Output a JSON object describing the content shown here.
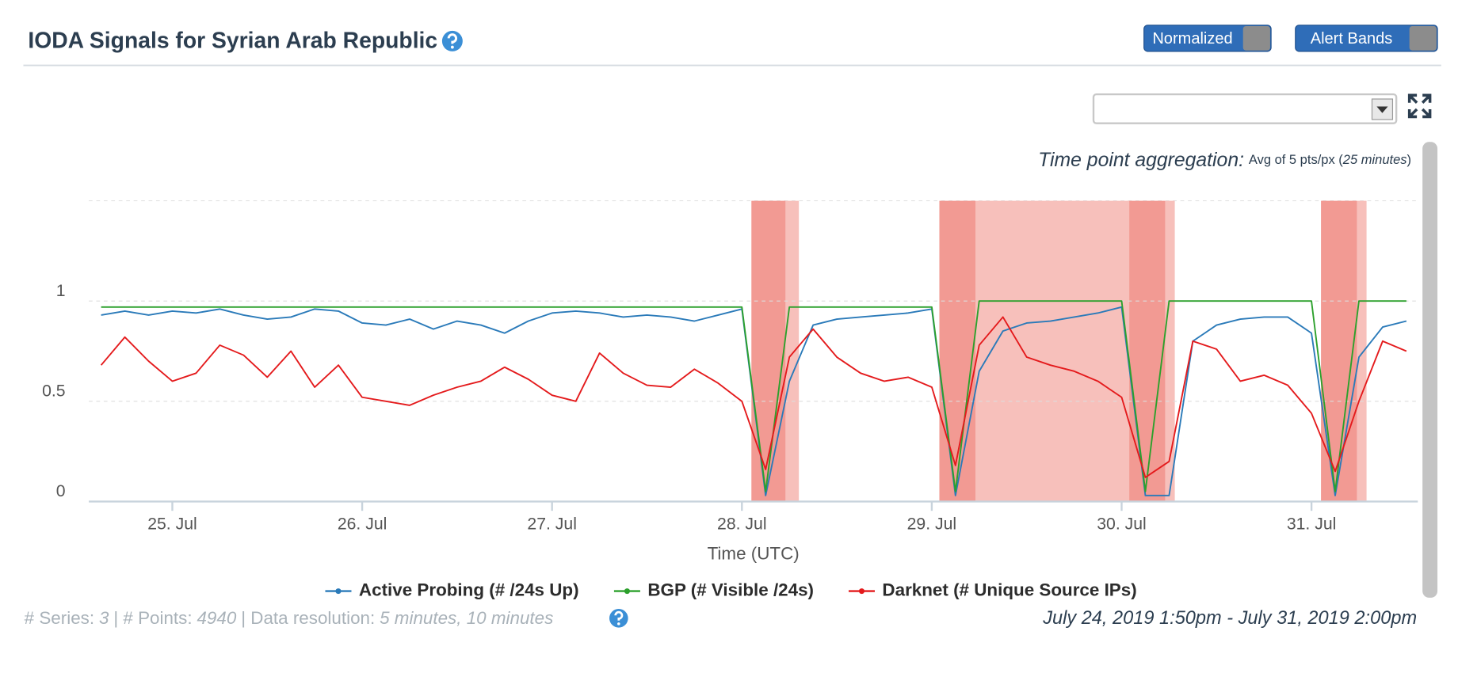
{
  "header": {
    "title": "IODA Signals for Syrian Arab Republic",
    "toggles": [
      "Normalized",
      "Alert Bands"
    ]
  },
  "aggregation": {
    "label": "Time point aggregation:",
    "text": "Avg of 5 pts/px (",
    "unit": "25 minutes",
    "close": ")"
  },
  "chart_data": {
    "type": "line",
    "xlabel": "Time (UTC)",
    "xlim": [
      24.56,
      31.56
    ],
    "xticks": [
      {
        "value": 25,
        "label": "25. Jul"
      },
      {
        "value": 26,
        "label": "26. Jul"
      },
      {
        "value": 27,
        "label": "27. Jul"
      },
      {
        "value": 28,
        "label": "28. Jul"
      },
      {
        "value": 29,
        "label": "29. Jul"
      },
      {
        "value": 30,
        "label": "30. Jul"
      },
      {
        "value": 31,
        "label": "31. Jul"
      }
    ],
    "ylim": [
      0,
      1.5
    ],
    "yticks": [
      0,
      0.5,
      1
    ],
    "grid": true,
    "x": [
      24.625,
      24.75,
      24.875,
      25.0,
      25.125,
      25.25,
      25.375,
      25.5,
      25.625,
      25.75,
      25.875,
      26.0,
      26.125,
      26.25,
      26.375,
      26.5,
      26.625,
      26.75,
      26.875,
      27.0,
      27.125,
      27.25,
      27.375,
      27.5,
      27.625,
      27.75,
      27.875,
      28.0,
      28.125,
      28.25,
      28.375,
      28.5,
      28.625,
      28.75,
      28.875,
      29.0,
      29.125,
      29.25,
      29.375,
      29.5,
      29.625,
      29.75,
      29.875,
      30.0,
      30.125,
      30.25,
      30.375,
      30.5,
      30.625,
      30.75,
      30.875,
      31.0,
      31.125,
      31.25,
      31.375,
      31.5
    ],
    "alert_bands": [
      {
        "from": 28.05,
        "to": 28.23,
        "color": "#f29a93"
      },
      {
        "from": 28.23,
        "to": 28.3,
        "color": "#f7c0bb"
      },
      {
        "from": 29.04,
        "to": 29.23,
        "color": "#f29a93"
      },
      {
        "from": 29.23,
        "to": 30.04,
        "color": "#f7c0bb"
      },
      {
        "from": 30.04,
        "to": 30.23,
        "color": "#f29a93"
      },
      {
        "from": 30.23,
        "to": 30.28,
        "color": "#f7c0bb"
      },
      {
        "from": 31.05,
        "to": 31.24,
        "color": "#f29a93"
      },
      {
        "from": 31.24,
        "to": 31.29,
        "color": "#f7c0bb"
      }
    ],
    "series": [
      {
        "name": "Active Probing (# /24s Up)",
        "color": "#2a7ab9",
        "values": [
          0.93,
          0.95,
          0.93,
          0.95,
          0.94,
          0.96,
          0.93,
          0.91,
          0.92,
          0.96,
          0.95,
          0.89,
          0.88,
          0.91,
          0.86,
          0.9,
          0.88,
          0.84,
          0.9,
          0.94,
          0.95,
          0.94,
          0.92,
          0.93,
          0.92,
          0.9,
          0.93,
          0.96,
          0.03,
          0.6,
          0.88,
          0.91,
          0.92,
          0.93,
          0.94,
          0.96,
          0.03,
          0.65,
          0.85,
          0.89,
          0.9,
          0.92,
          0.94,
          0.97,
          0.03,
          0.03,
          0.8,
          0.88,
          0.91,
          0.92,
          0.92,
          0.84,
          0.03,
          0.72,
          0.87,
          0.9
        ]
      },
      {
        "name": "BGP (# Visible /24s)",
        "color": "#2ca02c",
        "values": [
          0.97,
          0.97,
          0.97,
          0.97,
          0.97,
          0.97,
          0.97,
          0.97,
          0.97,
          0.97,
          0.97,
          0.97,
          0.97,
          0.97,
          0.97,
          0.97,
          0.97,
          0.97,
          0.97,
          0.97,
          0.97,
          0.97,
          0.97,
          0.97,
          0.97,
          0.97,
          0.97,
          0.97,
          0.05,
          0.97,
          0.97,
          0.97,
          0.97,
          0.97,
          0.97,
          0.97,
          0.05,
          1.0,
          1.0,
          1.0,
          1.0,
          1.0,
          1.0,
          1.0,
          0.05,
          1.0,
          1.0,
          1.0,
          1.0,
          1.0,
          1.0,
          1.0,
          0.05,
          1.0,
          1.0,
          1.0
        ]
      },
      {
        "name": "Darknet (# Unique Source IPs)",
        "color": "#e41a1c",
        "values": [
          0.68,
          0.82,
          0.7,
          0.6,
          0.64,
          0.78,
          0.73,
          0.62,
          0.75,
          0.57,
          0.68,
          0.52,
          0.5,
          0.48,
          0.53,
          0.57,
          0.6,
          0.67,
          0.61,
          0.53,
          0.5,
          0.74,
          0.64,
          0.58,
          0.57,
          0.66,
          0.59,
          0.5,
          0.16,
          0.72,
          0.86,
          0.72,
          0.64,
          0.6,
          0.62,
          0.57,
          0.18,
          0.78,
          0.92,
          0.72,
          0.68,
          0.65,
          0.6,
          0.52,
          0.12,
          0.2,
          0.8,
          0.76,
          0.6,
          0.63,
          0.58,
          0.44,
          0.15,
          0.5,
          0.8,
          0.75
        ]
      }
    ]
  },
  "footer": {
    "series_label": "# Series:",
    "series_count": 3,
    "points_label": "| # Points:",
    "points_count": 4940,
    "resolution_label": "| Data resolution:",
    "resolution": "5 minutes, 10 minutes",
    "time_range": "July 24, 2019 1:50pm - July 31, 2019 2:00pm"
  }
}
